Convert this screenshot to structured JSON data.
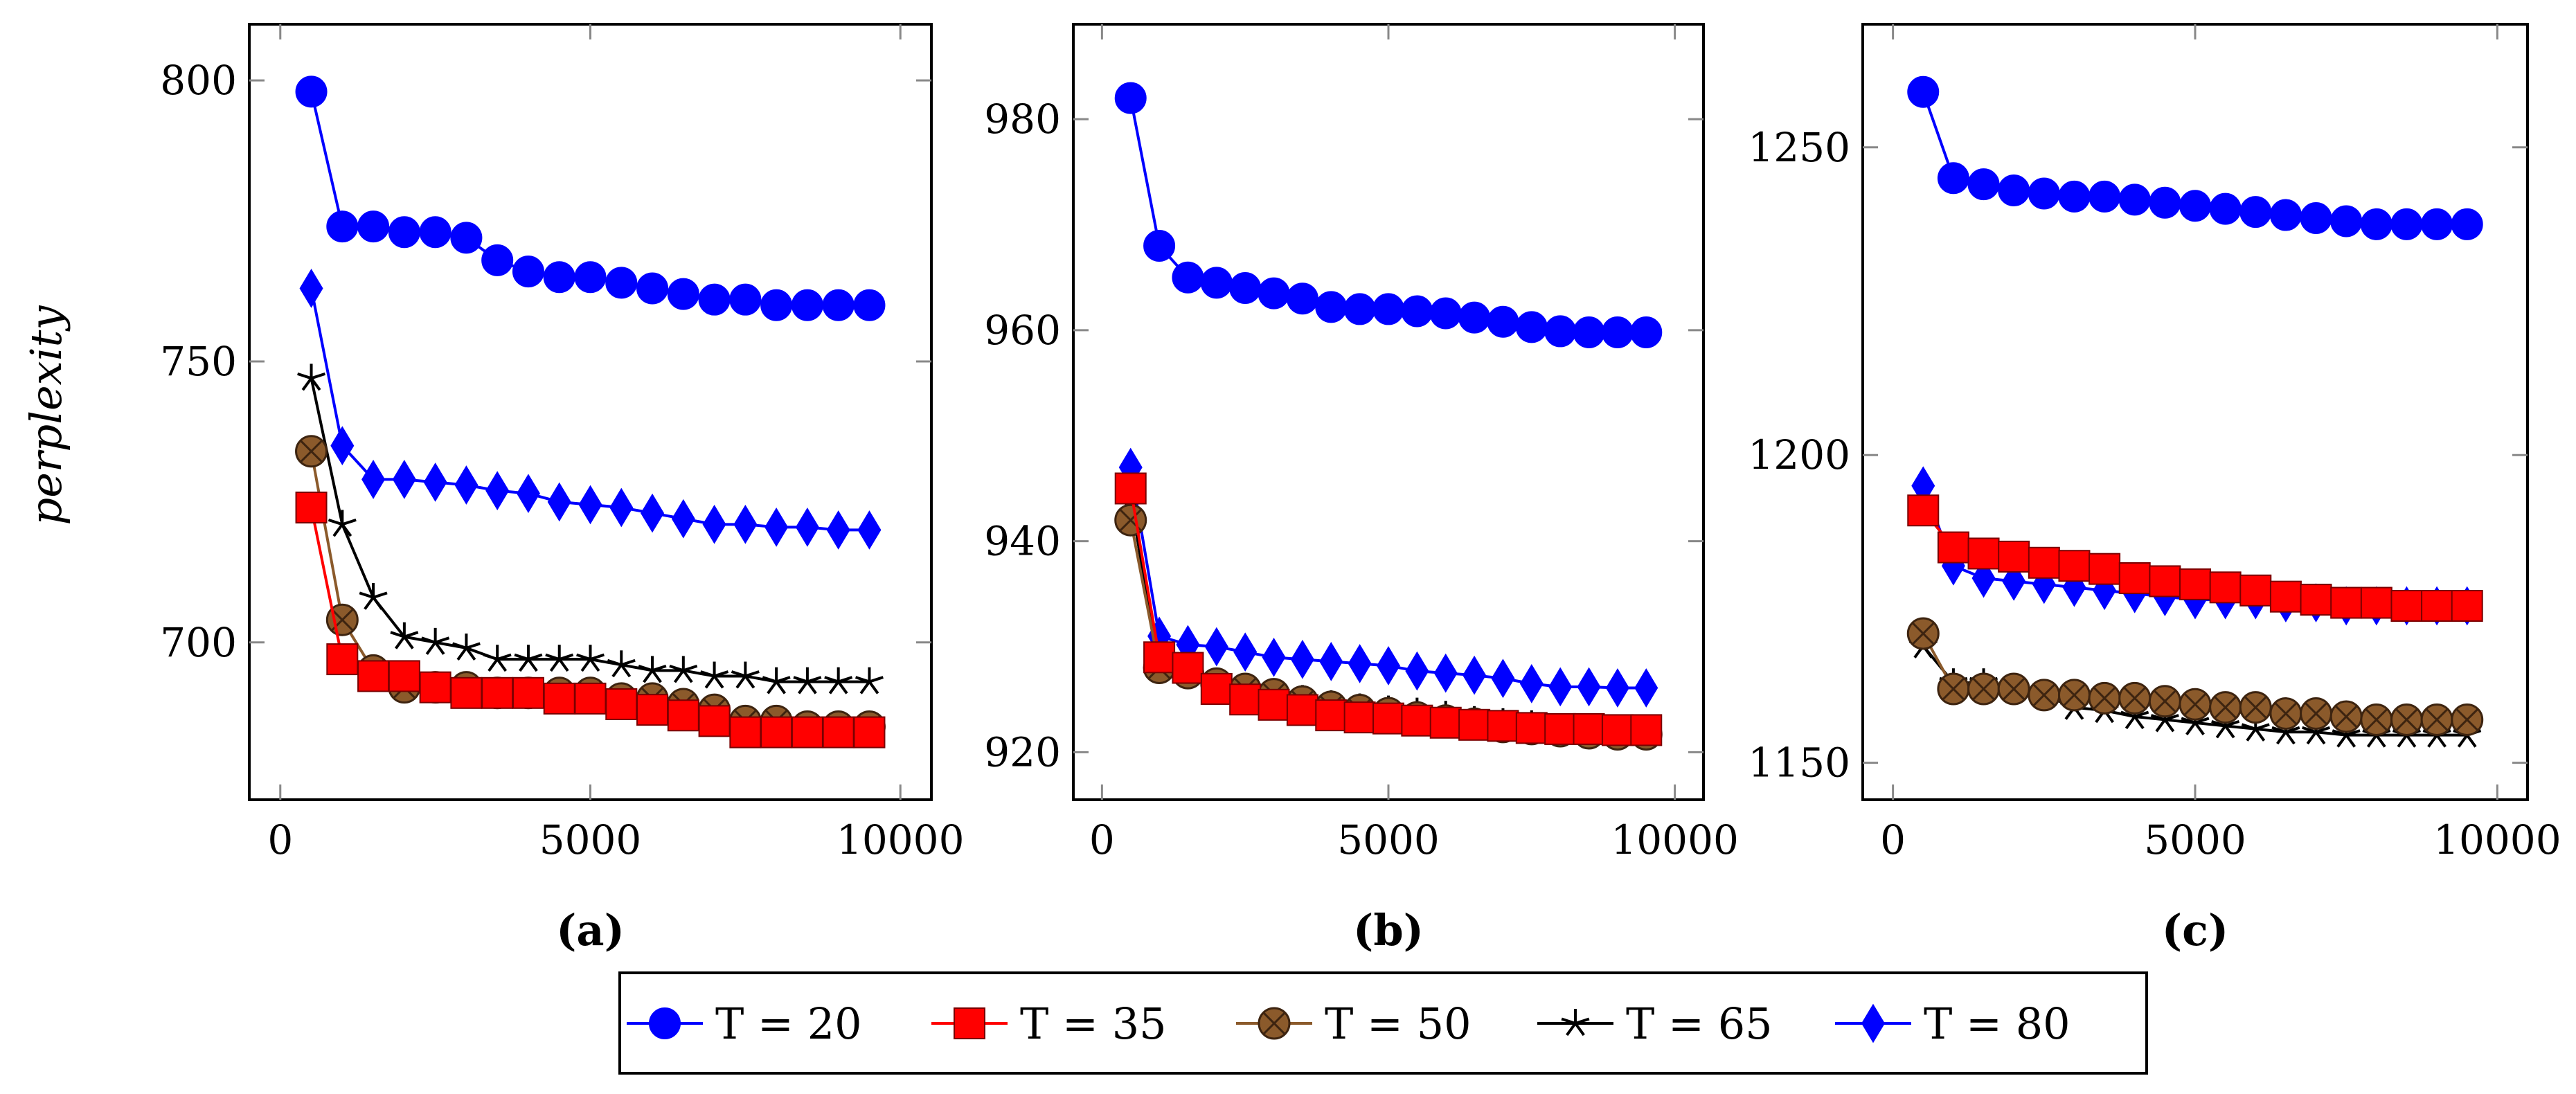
{
  "figure": {
    "ylabel": "perplexity",
    "legend": [
      {
        "label": "T = 20"
      },
      {
        "label": "T = 35"
      },
      {
        "label": "T = 50"
      },
      {
        "label": "T = 65"
      },
      {
        "label": "T = 80"
      }
    ]
  },
  "chart_data": [
    {
      "type": "line",
      "caption": "(a)",
      "ylabel": "perplexity",
      "xlim": [
        -500,
        10500
      ],
      "ylim": [
        672,
        810
      ],
      "xticks": [
        0,
        5000,
        10000
      ],
      "yticks": [
        700,
        750,
        800
      ],
      "series": [
        {
          "name": "T = 20",
          "color": "#0000ff",
          "marker": "circle",
          "x": [
            500,
            1000,
            1500,
            2000,
            2500,
            3000,
            3500,
            4000,
            4500,
            5000,
            5500,
            6000,
            6500,
            7000,
            7500,
            8000,
            8500,
            9000,
            9500
          ],
          "y": [
            798,
            774,
            774,
            773,
            773,
            772,
            768,
            766,
            765,
            765,
            764,
            763,
            762,
            761,
            761,
            760,
            760,
            760,
            760
          ]
        },
        {
          "name": "T = 35",
          "color": "#ff0000",
          "marker": "square",
          "x": [
            500,
            1000,
            1500,
            2000,
            2500,
            3000,
            3500,
            4000,
            4500,
            5000,
            5500,
            6000,
            6500,
            7000,
            7500,
            8000,
            8500,
            9000,
            9500
          ],
          "y": [
            724,
            697,
            694,
            694,
            692,
            691,
            691,
            691,
            690,
            690,
            689,
            688,
            687,
            686,
            684,
            684,
            684,
            684,
            684
          ]
        },
        {
          "name": "T = 50",
          "color": "#8b5a2b",
          "marker": "otimes",
          "x": [
            500,
            1000,
            1500,
            2000,
            2500,
            3000,
            3500,
            4000,
            4500,
            5000,
            5500,
            6000,
            6500,
            7000,
            7500,
            8000,
            8500,
            9000,
            9500
          ],
          "y": [
            734,
            704,
            695,
            692,
            692,
            692,
            691,
            691,
            691,
            691,
            690,
            690,
            689,
            688,
            686,
            686,
            685,
            685,
            685
          ]
        },
        {
          "name": "T = 65",
          "color": "#000000",
          "marker": "star",
          "x": [
            500,
            1000,
            1500,
            2000,
            2500,
            3000,
            3500,
            4000,
            4500,
            5000,
            5500,
            6000,
            6500,
            7000,
            7500,
            8000,
            8500,
            9000,
            9500
          ],
          "y": [
            747,
            721,
            708,
            701,
            700,
            699,
            697,
            697,
            697,
            697,
            696,
            695,
            695,
            694,
            694,
            693,
            693,
            693,
            693
          ]
        },
        {
          "name": "T = 80",
          "color": "#0000ff",
          "marker": "diamond",
          "x": [
            500,
            1000,
            1500,
            2000,
            2500,
            3000,
            3500,
            4000,
            4500,
            5000,
            5500,
            6000,
            6500,
            7000,
            7500,
            8000,
            8500,
            9000,
            9500
          ],
          "y": [
            763,
            735,
            729,
            729,
            728.5,
            728,
            727,
            726.5,
            725,
            724.5,
            724,
            723,
            722,
            721,
            721,
            720.5,
            720.5,
            720,
            720
          ]
        }
      ]
    },
    {
      "type": "line",
      "caption": "(b)",
      "ylabel": "",
      "xlim": [
        -500,
        10500
      ],
      "ylim": [
        915.5,
        989
      ],
      "xticks": [
        0,
        5000,
        10000
      ],
      "yticks": [
        920,
        940,
        960,
        980
      ],
      "series": [
        {
          "name": "T = 20",
          "color": "#0000ff",
          "marker": "circle",
          "x": [
            500,
            1000,
            1500,
            2000,
            2500,
            3000,
            3500,
            4000,
            4500,
            5000,
            5500,
            6000,
            6500,
            7000,
            7500,
            8000,
            8500,
            9000,
            9500
          ],
          "y": [
            982,
            968,
            965,
            964.5,
            964,
            963.5,
            963,
            962.2,
            962,
            962,
            961.8,
            961.6,
            961.2,
            960.8,
            960.3,
            959.9,
            959.8,
            959.8,
            959.8
          ]
        },
        {
          "name": "T = 35",
          "color": "#ff0000",
          "marker": "square",
          "x": [
            500,
            1000,
            1500,
            2000,
            2500,
            3000,
            3500,
            4000,
            4500,
            5000,
            5500,
            6000,
            6500,
            7000,
            7500,
            8000,
            8500,
            9000,
            9500
          ],
          "y": [
            945,
            929,
            928,
            926,
            925,
            924.5,
            924,
            923.5,
            923.3,
            923.2,
            923,
            922.8,
            922.6,
            922.5,
            922.3,
            922.2,
            922.2,
            922.1,
            922.1
          ]
        },
        {
          "name": "T = 50",
          "color": "#8b5a2b",
          "marker": "otimes",
          "x": [
            500,
            1000,
            1500,
            2000,
            2500,
            3000,
            3500,
            4000,
            4500,
            5000,
            5500,
            6000,
            6500,
            7000,
            7500,
            8000,
            8500,
            9000,
            9500
          ],
          "y": [
            942,
            928,
            927.5,
            926.5,
            926,
            925.5,
            924.8,
            924.3,
            924,
            923.7,
            923.3,
            923,
            922.7,
            922.4,
            922.2,
            922,
            921.8,
            921.7,
            921.7
          ]
        },
        {
          "name": "T = 65",
          "color": "#000000",
          "marker": "star",
          "x": [
            500,
            1000,
            1500,
            2000,
            2500,
            3000,
            3500,
            4000,
            4500,
            5000,
            5500,
            6000,
            6500,
            7000,
            7500,
            8000,
            8500,
            9000,
            9500
          ],
          "y": [
            944,
            928,
            927.5,
            926.5,
            925.8,
            925.4,
            925,
            924.5,
            924.2,
            924,
            923.8,
            923.5,
            923,
            922.8,
            922.6,
            922.2,
            922.1,
            922,
            922
          ]
        },
        {
          "name": "T = 80",
          "color": "#0000ff",
          "marker": "diamond",
          "x": [
            500,
            1000,
            1500,
            2000,
            2500,
            3000,
            3500,
            4000,
            4500,
            5000,
            5500,
            6000,
            6500,
            7000,
            7500,
            8000,
            8500,
            9000,
            9500
          ],
          "y": [
            947,
            931,
            930.2,
            930,
            929.5,
            929,
            928.8,
            928.6,
            928.4,
            928.2,
            927.7,
            927.5,
            927.3,
            927,
            926.5,
            926.2,
            926.2,
            926.1,
            926.1
          ]
        }
      ]
    },
    {
      "type": "line",
      "caption": "(c)",
      "ylabel": "",
      "xlim": [
        -500,
        10500
      ],
      "ylim": [
        1144,
        1270
      ],
      "xticks": [
        0,
        5000,
        10000
      ],
      "yticks": [
        1150,
        1200,
        1250
      ],
      "series": [
        {
          "name": "T = 20",
          "color": "#0000ff",
          "marker": "circle",
          "x": [
            500,
            1000,
            1500,
            2000,
            2500,
            3000,
            3500,
            4000,
            4500,
            5000,
            5500,
            6000,
            6500,
            7000,
            7500,
            8000,
            8500,
            9000,
            9500
          ],
          "y": [
            1259,
            1245,
            1244,
            1243,
            1242.5,
            1242,
            1242,
            1241.5,
            1241,
            1240.5,
            1240,
            1239.5,
            1239,
            1238.5,
            1238,
            1237.5,
            1237.5,
            1237.5,
            1237.5
          ]
        },
        {
          "name": "T = 35",
          "color": "#ff0000",
          "marker": "square",
          "x": [
            500,
            1000,
            1500,
            2000,
            2500,
            3000,
            3500,
            4000,
            4500,
            5000,
            5500,
            6000,
            6500,
            7000,
            7500,
            8000,
            8500,
            9000,
            9500
          ],
          "y": [
            1191,
            1185,
            1184,
            1183.5,
            1182.5,
            1182,
            1181.5,
            1180,
            1179.5,
            1179,
            1178.5,
            1178,
            1177,
            1176.5,
            1176,
            1176,
            1175.5,
            1175.5,
            1175.5
          ]
        },
        {
          "name": "T = 50",
          "color": "#8b5a2b",
          "marker": "otimes",
          "x": [
            500,
            1000,
            1500,
            2000,
            2500,
            3000,
            3500,
            4000,
            4500,
            5000,
            5500,
            6000,
            6500,
            7000,
            7500,
            8000,
            8500,
            9000,
            9500
          ],
          "y": [
            1171,
            1162,
            1162,
            1162,
            1161,
            1161,
            1160.5,
            1160.5,
            1160,
            1159.5,
            1159,
            1159,
            1158,
            1158,
            1157.5,
            1157,
            1157,
            1157,
            1157
          ]
        },
        {
          "name": "T = 65",
          "color": "#000000",
          "marker": "star",
          "x": [
            500,
            1000,
            1500,
            2000,
            2500,
            3000,
            3500,
            4000,
            4500,
            5000,
            5500,
            6000,
            6500,
            7000,
            7500,
            8000,
            8500,
            9000,
            9500
          ],
          "y": [
            1169,
            1163,
            1163,
            1162,
            1161,
            1159,
            1158.5,
            1157.5,
            1157,
            1156.5,
            1156,
            1155.5,
            1155,
            1155,
            1154.5,
            1154.5,
            1154.5,
            1154.5,
            1154.5
          ]
        },
        {
          "name": "T = 80",
          "color": "#0000ff",
          "marker": "diamond",
          "x": [
            500,
            1000,
            1500,
            2000,
            2500,
            3000,
            3500,
            4000,
            4500,
            5000,
            5500,
            6000,
            6500,
            7000,
            7500,
            8000,
            8500,
            9000,
            9500
          ],
          "y": [
            1195,
            1182,
            1180,
            1179.5,
            1179,
            1178.5,
            1178,
            1177.5,
            1177,
            1176.5,
            1176.5,
            1176.5,
            1176,
            1176,
            1175.5,
            1175.5,
            1175.5,
            1175.5,
            1175.5
          ]
        }
      ]
    }
  ]
}
